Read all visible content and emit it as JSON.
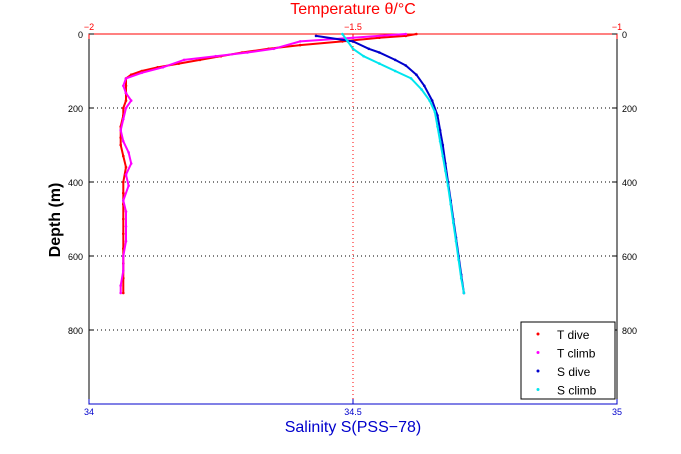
{
  "chart_data": {
    "type": "scatter",
    "title": "Temperature θ/°C",
    "title_color": "#ff0000",
    "ylabel": "Depth (m)",
    "xlabel_bottom": "Salinity S(PSS−78)",
    "xlabel_bottom_color": "#0000cc",
    "y_axis": {
      "range": [
        0,
        1000
      ],
      "inverted": true,
      "ticks": [
        "0",
        "200",
        "400",
        "600",
        "800"
      ],
      "tick_values": [
        0,
        200,
        400,
        600,
        800
      ]
    },
    "x_top": {
      "label": "Temperature θ/°C",
      "range": [
        -2,
        -1
      ],
      "ticks": [
        "−2",
        "−1.5",
        "−1"
      ],
      "tick_values": [
        -2,
        -1.5,
        -1
      ],
      "color": "#ff0000"
    },
    "x_bottom": {
      "label": "Salinity S(PSS−78)",
      "range": [
        34,
        35
      ],
      "ticks": [
        "34",
        "34.5",
        "35"
      ],
      "tick_values": [
        34,
        34.5,
        35
      ],
      "color": "#0000cc"
    },
    "grid": {
      "horizontal": true,
      "vertical_dotted_at_center": true
    },
    "legend": {
      "placement": "bottom-right",
      "entries": [
        "T dive",
        "T climb",
        "S dive",
        "S climb"
      ]
    },
    "series": [
      {
        "name": "T dive",
        "axis": "top",
        "color": "#ff0000",
        "points": [
          [
            -1.38,
            0
          ],
          [
            -1.4,
            5
          ],
          [
            -1.45,
            10
          ],
          [
            -1.52,
            20
          ],
          [
            -1.6,
            30
          ],
          [
            -1.66,
            40
          ],
          [
            -1.71,
            50
          ],
          [
            -1.75,
            60
          ],
          [
            -1.79,
            70
          ],
          [
            -1.83,
            80
          ],
          [
            -1.87,
            90
          ],
          [
            -1.9,
            100
          ],
          [
            -1.92,
            110
          ],
          [
            -1.93,
            120
          ],
          [
            -1.93,
            140
          ],
          [
            -1.93,
            160
          ],
          [
            -1.93,
            180
          ],
          [
            -1.935,
            200
          ],
          [
            -1.935,
            220
          ],
          [
            -1.94,
            250
          ],
          [
            -1.94,
            280
          ],
          [
            -1.94,
            300
          ],
          [
            -1.935,
            330
          ],
          [
            -1.93,
            360
          ],
          [
            -1.935,
            400
          ],
          [
            -1.935,
            430
          ],
          [
            -1.935,
            460
          ],
          [
            -1.935,
            500
          ],
          [
            -1.935,
            540
          ],
          [
            -1.935,
            580
          ],
          [
            -1.935,
            620
          ],
          [
            -1.935,
            660
          ],
          [
            -1.935,
            700
          ]
        ]
      },
      {
        "name": "T climb",
        "axis": "top",
        "color": "#ff00ff",
        "points": [
          [
            -1.4,
            0
          ],
          [
            -1.5,
            10
          ],
          [
            -1.6,
            20
          ],
          [
            -1.65,
            40
          ],
          [
            -1.7,
            50
          ],
          [
            -1.76,
            60
          ],
          [
            -1.82,
            70
          ],
          [
            -1.86,
            90
          ],
          [
            -1.9,
            105
          ],
          [
            -1.93,
            120
          ],
          [
            -1.935,
            140
          ],
          [
            -1.93,
            160
          ],
          [
            -1.92,
            180
          ],
          [
            -1.93,
            200
          ],
          [
            -1.935,
            230
          ],
          [
            -1.94,
            260
          ],
          [
            -1.935,
            290
          ],
          [
            -1.925,
            320
          ],
          [
            -1.92,
            350
          ],
          [
            -1.93,
            380
          ],
          [
            -1.925,
            410
          ],
          [
            -1.935,
            450
          ],
          [
            -1.93,
            480
          ],
          [
            -1.93,
            520
          ],
          [
            -1.93,
            560
          ],
          [
            -1.935,
            600
          ],
          [
            -1.935,
            640
          ],
          [
            -1.94,
            680
          ],
          [
            -1.94,
            700
          ]
        ]
      },
      {
        "name": "S dive",
        "axis": "bottom",
        "color": "#0000cc",
        "points": [
          [
            34.43,
            5
          ],
          [
            34.5,
            20
          ],
          [
            34.53,
            40
          ],
          [
            34.55,
            50
          ],
          [
            34.58,
            70
          ],
          [
            34.6,
            85
          ],
          [
            34.62,
            110
          ],
          [
            34.635,
            140
          ],
          [
            34.65,
            180
          ],
          [
            34.66,
            220
          ],
          [
            34.665,
            260
          ],
          [
            34.67,
            300
          ],
          [
            34.675,
            350
          ],
          [
            34.68,
            400
          ],
          [
            34.685,
            450
          ],
          [
            34.69,
            500
          ],
          [
            34.695,
            550
          ],
          [
            34.7,
            600
          ],
          [
            34.705,
            650
          ],
          [
            34.71,
            700
          ]
        ]
      },
      {
        "name": "S climb",
        "axis": "bottom",
        "color": "#00e5ee",
        "points": [
          [
            34.48,
            0
          ],
          [
            34.49,
            20
          ],
          [
            34.5,
            40
          ],
          [
            34.52,
            60
          ],
          [
            34.55,
            80
          ],
          [
            34.58,
            100
          ],
          [
            34.61,
            120
          ],
          [
            34.63,
            150
          ],
          [
            34.645,
            180
          ],
          [
            34.655,
            210
          ],
          [
            34.66,
            250
          ],
          [
            34.665,
            290
          ],
          [
            34.67,
            330
          ],
          [
            34.675,
            370
          ],
          [
            34.68,
            410
          ],
          [
            34.685,
            460
          ],
          [
            34.69,
            510
          ],
          [
            34.695,
            560
          ],
          [
            34.7,
            610
          ],
          [
            34.705,
            660
          ],
          [
            34.71,
            700
          ]
        ]
      }
    ]
  }
}
